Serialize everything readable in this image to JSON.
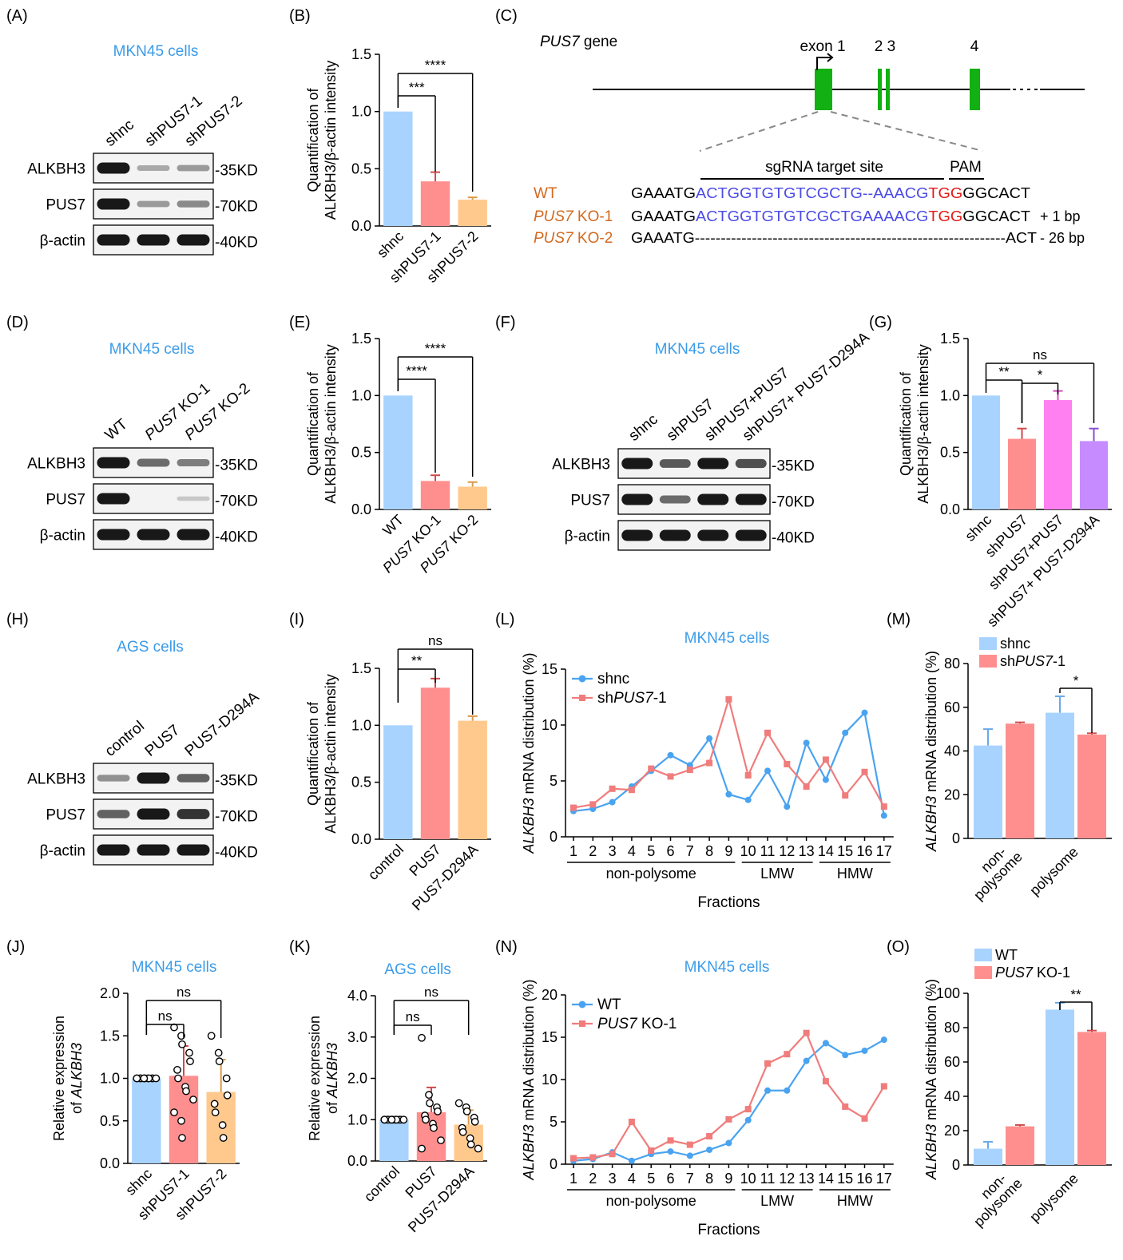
{
  "colors": {
    "blue": "#a8d3ff",
    "red": "#ff8f8f",
    "orange": "#ffc98e",
    "pink": "#ff80f0",
    "purple": "#c68cff",
    "title_blue": "#3b9be8",
    "line_blue": "#4aa3f0",
    "line_red": "#f07c7c",
    "gene_green": "#12b012",
    "seq_blue": "#4a4ae6",
    "seq_red": "#e51717",
    "ko_orange": "#d2691e"
  },
  "panels": {
    "A": {
      "letter": "(A)",
      "title": "MKN45 cells",
      "lanes": [
        "shnc",
        "shPUS7-1",
        "shPUS7-2"
      ],
      "rows": [
        {
          "label": "ALKBH3",
          "kd": "-35KD",
          "intensity": [
            1,
            0.22,
            0.3
          ]
        },
        {
          "label": "PUS7",
          "kd": "-70KD",
          "intensity": [
            1,
            0.3,
            0.38
          ]
        },
        {
          "label": "β-actin",
          "kd": "-40KD",
          "intensity": [
            1,
            1,
            1
          ]
        }
      ]
    },
    "D": {
      "letter": "(D)",
      "title": "MKN45 cells",
      "lanes": [
        "WT",
        "PUS7 KO-1",
        "PUS7 KO-2"
      ],
      "rows": [
        {
          "label": "ALKBH3",
          "kd": "-35KD",
          "intensity": [
            1,
            0.55,
            0.45
          ]
        },
        {
          "label": "PUS7",
          "kd": "-70KD",
          "intensity": [
            1,
            0,
            0.05
          ]
        },
        {
          "label": "β-actin",
          "kd": "-40KD",
          "intensity": [
            1,
            1,
            1
          ]
        }
      ]
    },
    "F": {
      "letter": "(F)",
      "title": "MKN45 cells",
      "lanes": [
        "shnc",
        "shPUS7",
        "shPUS7+PUS7",
        "shPUS7+ PUS7-D294A"
      ],
      "rows": [
        {
          "label": "ALKBH3",
          "kd": "-35KD",
          "intensity": [
            1,
            0.65,
            1,
            0.7
          ]
        },
        {
          "label": "PUS7",
          "kd": "-70KD",
          "intensity": [
            1,
            0.55,
            1,
            1
          ]
        },
        {
          "label": "β-actin",
          "kd": "-40KD",
          "intensity": [
            1,
            1,
            1,
            1
          ]
        }
      ]
    },
    "H": {
      "letter": "(H)",
      "title": "AGS cells",
      "lanes": [
        "control",
        "PUS7",
        "PUS7-D294A"
      ],
      "rows": [
        {
          "label": "ALKBH3",
          "kd": "-35KD",
          "intensity": [
            0.35,
            1,
            0.6
          ]
        },
        {
          "label": "PUS7",
          "kd": "-70KD",
          "intensity": [
            0.6,
            1,
            0.85
          ]
        },
        {
          "label": "β-actin",
          "kd": "-40KD",
          "intensity": [
            1,
            1,
            1
          ]
        }
      ]
    },
    "C": {
      "letter": "(C)",
      "gene": "PUS7",
      "gene_suffix": " gene",
      "exon1": "exon 1",
      "ex23": "2 3",
      "ex4": "4",
      "sgrna": "sgRNA target site",
      "pam": "PAM",
      "rows": [
        {
          "name": "WT",
          "name_prefix": "",
          "seq": [
            [
              "GAAATG",
              "black"
            ],
            [
              "ACTGGTGTGTCGCTG--AAACG",
              "blue"
            ],
            [
              "TGG",
              "red"
            ],
            [
              "GGCACT",
              "black"
            ]
          ],
          "note": ""
        },
        {
          "name": " KO-1",
          "name_prefix": "PUS7",
          "seq": [
            [
              "GAAATG",
              "black"
            ],
            [
              "ACTGGTGTGTCGCTGAAAACG",
              "blue"
            ],
            [
              "TGG",
              "red"
            ],
            [
              "GGCACT",
              "black"
            ]
          ],
          "note": "+ 1 bp"
        },
        {
          "name": " KO-2",
          "name_prefix": "PUS7",
          "seq": [
            [
              "GAAATG",
              "black"
            ],
            [
              "------------------------------------------------------------ACT",
              "black"
            ]
          ],
          "note": "- 26 bp"
        }
      ]
    }
  },
  "chart_data": [
    {
      "panel": "(B)",
      "type": "bar",
      "categories": [
        "shnc",
        "shPUS7-1",
        "shPUS7-2"
      ],
      "values": [
        1.0,
        0.39,
        0.23
      ],
      "errors": [
        0,
        0.08,
        0.02
      ],
      "colors": [
        "blue",
        "red",
        "orange"
      ],
      "ylabel": "Quantification of ALKBH3/β-actin intensity",
      "ylim": [
        0,
        1.5
      ],
      "yticks": [
        "0.0",
        "0.5",
        "1.0",
        "1.5"
      ],
      "sig": [
        {
          "from": 0,
          "to": 1,
          "label": "***"
        },
        {
          "from": 0,
          "to": 2,
          "label": "****"
        }
      ]
    },
    {
      "panel": "(E)",
      "type": "bar",
      "categories": [
        "WT",
        "PUS7 KO-1",
        "PUS7 KO-2"
      ],
      "values": [
        1.0,
        0.25,
        0.2
      ],
      "errors": [
        0,
        0.05,
        0.04
      ],
      "colors": [
        "blue",
        "red",
        "orange"
      ],
      "ylabel": "Quantification of ALKBH3/β-actin intensity",
      "ylim": [
        0,
        1.5
      ],
      "yticks": [
        "0.0",
        "0.5",
        "1.0",
        "1.5"
      ],
      "sig": [
        {
          "from": 0,
          "to": 1,
          "label": "****"
        },
        {
          "from": 0,
          "to": 2,
          "label": "****"
        }
      ]
    },
    {
      "panel": "(G)",
      "type": "bar",
      "categories": [
        "shnc",
        "shPUS7",
        "shPUS7+PUS7",
        "shPUS7+ PUS7-D294A"
      ],
      "values": [
        1.0,
        0.62,
        0.96,
        0.6
      ],
      "errors": [
        0,
        0.09,
        0.08,
        0.11
      ],
      "colors": [
        "blue",
        "red",
        "pink",
        "purple"
      ],
      "ylabel": "Quantification of ALKBH3/β-actin intensity",
      "ylim": [
        0,
        1.5
      ],
      "yticks": [
        "0.0",
        "0.5",
        "1.0",
        "1.5"
      ],
      "sig": [
        {
          "from": 0,
          "to": 1,
          "label": "**"
        },
        {
          "from": 1,
          "to": 2,
          "label": "*"
        },
        {
          "from": 0,
          "to": 3,
          "label": "ns"
        }
      ]
    },
    {
      "panel": "(I)",
      "type": "bar",
      "categories": [
        "control",
        "PUS7",
        "PUS7-D294A"
      ],
      "values": [
        1.0,
        1.33,
        1.04
      ],
      "errors": [
        0,
        0.08,
        0.04
      ],
      "colors": [
        "blue",
        "red",
        "orange"
      ],
      "ylabel": "Quantification of ALKBH3/β-actin intensity",
      "ylim": [
        0,
        1.5
      ],
      "yticks": [
        "0.0",
        "0.5",
        "1.0",
        "1.5"
      ],
      "sig": [
        {
          "from": 0,
          "to": 1,
          "label": "**"
        },
        {
          "from": 0,
          "to": 2,
          "label": "ns"
        }
      ]
    },
    {
      "panel": "(J)",
      "type": "bar",
      "title": "MKN45 cells",
      "categories": [
        "shnc",
        "shPUS7-1",
        "shPUS7-2"
      ],
      "values": [
        1.0,
        1.03,
        0.84
      ],
      "errors": [
        0,
        0.35,
        0.38
      ],
      "points": [
        [
          1,
          1,
          1,
          1,
          1,
          1,
          1,
          1,
          1,
          1,
          1,
          1
        ],
        [
          1.6,
          1.5,
          1.4,
          1.3,
          1.2,
          1.1,
          1.0,
          0.9,
          0.85,
          0.75,
          0.6,
          0.5,
          0.3
        ],
        [
          1.5,
          1.3,
          1.2,
          1.0,
          0.8,
          0.7,
          0.6,
          0.45,
          0.3
        ]
      ],
      "colors": [
        "blue",
        "red",
        "orange"
      ],
      "ylabel": "Relative expression of ALKBH3",
      "ylim": [
        0,
        2
      ],
      "yticks": [
        "0.0",
        "0.5",
        "1.0",
        "1.5",
        "2.0"
      ],
      "sig": [
        {
          "from": 0,
          "to": 1,
          "label": "ns"
        },
        {
          "from": 0,
          "to": 2,
          "label": "ns"
        }
      ]
    },
    {
      "panel": "(K)",
      "type": "bar",
      "title": "AGS cells",
      "categories": [
        "control",
        "PUS7",
        "PUS7-D294A"
      ],
      "values": [
        1.0,
        1.18,
        0.88
      ],
      "errors": [
        0,
        0.6,
        0.35
      ],
      "points": [
        [
          1,
          1,
          1,
          1,
          1,
          1,
          1,
          1,
          1,
          1,
          1,
          1
        ],
        [
          2.98,
          1.6,
          1.4,
          1.3,
          1.2,
          1.1,
          1.0,
          0.9,
          0.8,
          0.5,
          0.3
        ],
        [
          1.4,
          1.3,
          1.2,
          1.05,
          0.95,
          0.8,
          0.7,
          0.55,
          0.4,
          0.3
        ]
      ],
      "colors": [
        "blue",
        "red",
        "orange"
      ],
      "ylabel": "Relative expression of ALKBH3",
      "ylim": [
        0,
        4
      ],
      "yticks": [
        "0.0",
        "1.0",
        "2.0",
        "3.0",
        "4.0"
      ],
      "sig": [
        {
          "from": 0,
          "to": 1,
          "label": "ns"
        },
        {
          "from": 0,
          "to": 2,
          "label": "ns"
        }
      ]
    },
    {
      "panel": "(L)",
      "type": "line",
      "title": "MKN45 cells",
      "x": [
        1,
        2,
        3,
        4,
        5,
        6,
        7,
        8,
        9,
        10,
        11,
        12,
        13,
        14,
        15,
        16,
        17
      ],
      "series": [
        {
          "name": "shnc",
          "color": "line_blue",
          "marker": "circle",
          "values": [
            2.3,
            2.5,
            3.1,
            4.5,
            5.9,
            7.3,
            6.4,
            8.8,
            3.8,
            3.3,
            5.9,
            2.7,
            8.4,
            5.1,
            9.3,
            11.1,
            1.9
          ]
        },
        {
          "name": "shPUS7-1",
          "color": "line_red",
          "marker": "square",
          "values": [
            2.6,
            2.9,
            4.3,
            4.2,
            6.1,
            5.4,
            6.0,
            6.6,
            12.3,
            5.5,
            9.3,
            6.5,
            4.5,
            6.9,
            3.7,
            5.8,
            2.7
          ]
        }
      ],
      "ylabel": "ALKBH3 mRNA distribution (%)",
      "xlabel": "Fractions",
      "ylim": [
        0,
        15
      ],
      "yticks": [
        "0",
        "5",
        "10",
        "15"
      ],
      "groups": [
        {
          "label": "non-polysome",
          "from": 1,
          "to": 9
        },
        {
          "label": "LMW",
          "from": 10,
          "to": 13
        },
        {
          "label": "HMW",
          "from": 14,
          "to": 17
        }
      ]
    },
    {
      "panel": "(N)",
      "type": "line",
      "title": "MKN45 cells",
      "x": [
        1,
        2,
        3,
        4,
        5,
        6,
        7,
        8,
        9,
        10,
        11,
        12,
        13,
        14,
        15,
        16,
        17
      ],
      "series": [
        {
          "name": "WT",
          "color": "line_blue",
          "marker": "circle",
          "values": [
            0.4,
            0.6,
            1.4,
            0.4,
            1.2,
            1.5,
            1.0,
            1.7,
            2.5,
            5.2,
            8.7,
            8.7,
            12.2,
            14.3,
            12.9,
            13.4,
            14.7
          ]
        },
        {
          "name": "PUS7 KO-1",
          "color": "line_red",
          "marker": "square",
          "values": [
            0.7,
            0.8,
            1.2,
            5.0,
            1.6,
            2.8,
            2.3,
            3.3,
            5.3,
            6.5,
            11.9,
            13.0,
            15.5,
            9.8,
            6.8,
            5.4,
            9.2
          ]
        }
      ],
      "ylabel": "ALKBH3 mRNA distribution (%)",
      "xlabel": "Fractions",
      "ylim": [
        0,
        20
      ],
      "yticks": [
        "0",
        "5",
        "10",
        "15",
        "20"
      ],
      "groups": [
        {
          "label": "non-polysome",
          "from": 1,
          "to": 9
        },
        {
          "label": "LMW",
          "from": 10,
          "to": 13
        },
        {
          "label": "HMW",
          "from": 14,
          "to": 17
        }
      ]
    },
    {
      "panel": "(M)",
      "type": "bar",
      "categories": [
        "non- polysome",
        "polysome"
      ],
      "series": [
        {
          "name": "shnc",
          "color": "blue",
          "values": [
            42.5,
            57.5
          ],
          "errors": [
            7.5,
            7.5
          ]
        },
        {
          "name": "shPUS7-1",
          "color": "red",
          "values": [
            52.5,
            47.5
          ],
          "errors": [
            0.6,
            0.6
          ]
        }
      ],
      "ylabel": "ALKBH3 mRNA distribution (%)",
      "ylim": [
        0,
        80
      ],
      "yticks": [
        "0",
        "20",
        "40",
        "60",
        "80"
      ],
      "sig_label": "*"
    },
    {
      "panel": "(O)",
      "type": "bar",
      "categories": [
        "non- polysome",
        "polysome"
      ],
      "series": [
        {
          "name": "WT",
          "color": "blue",
          "values": [
            9.5,
            90.5
          ],
          "errors": [
            4,
            4
          ]
        },
        {
          "name": "PUS7 KO-1",
          "color": "red",
          "values": [
            22.5,
            77.5
          ],
          "errors": [
            0.8,
            0.8
          ]
        }
      ],
      "ylabel": "ALKBH3 mRNA distribution (%)",
      "ylim": [
        0,
        100
      ],
      "yticks": [
        "0",
        "20",
        "40",
        "60",
        "80",
        "100"
      ],
      "sig_label": "**"
    }
  ]
}
